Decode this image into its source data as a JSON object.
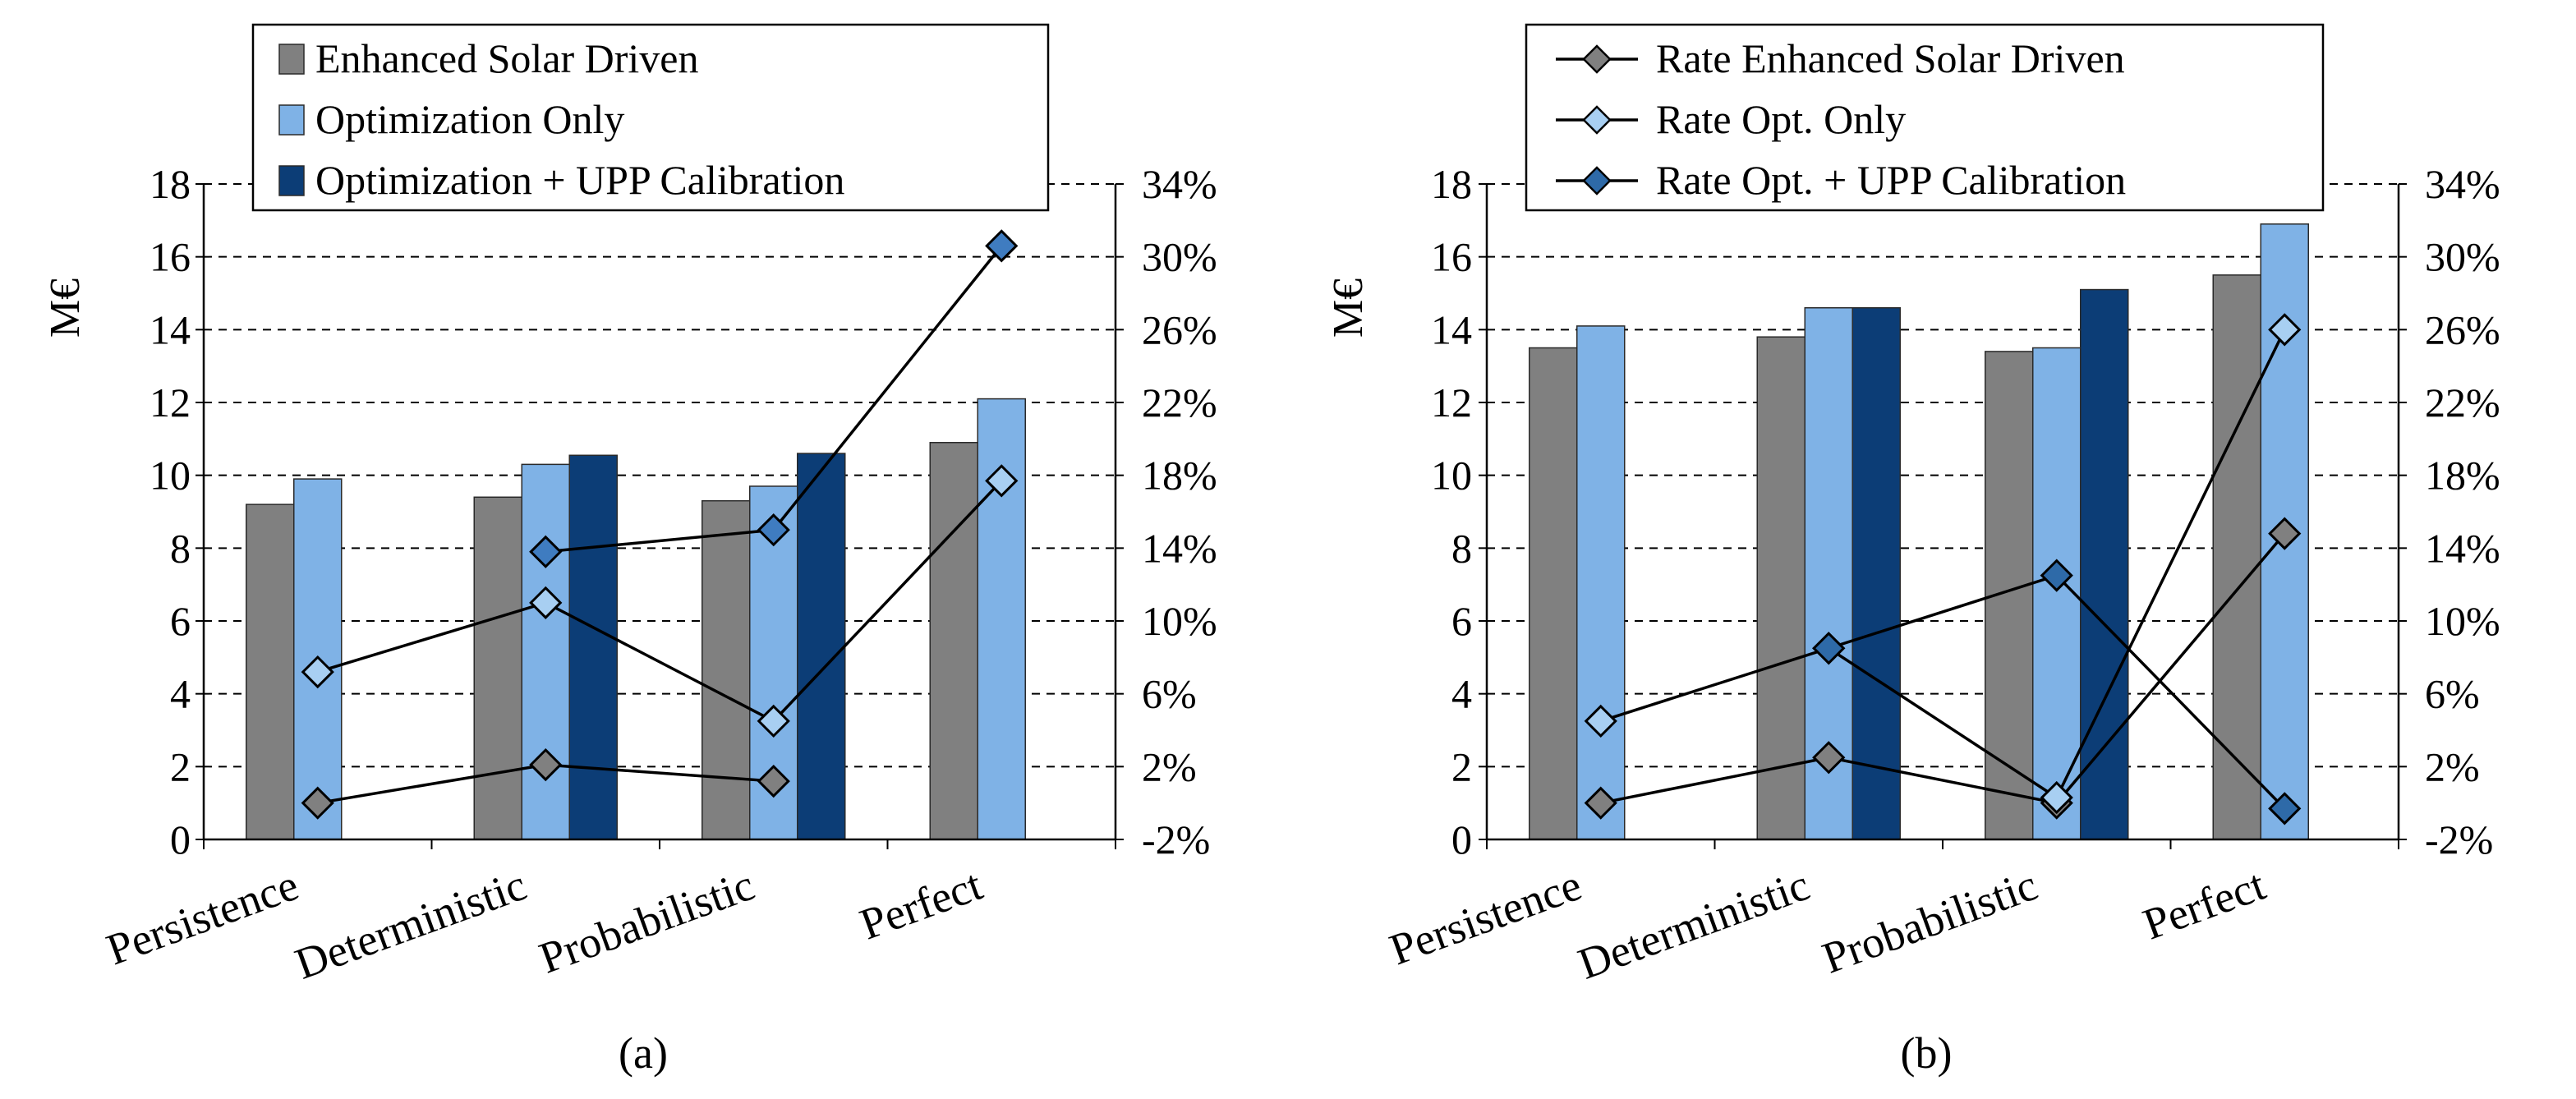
{
  "chart_data": [
    {
      "type": "bar",
      "panel_label": "(a)",
      "categories": [
        "Persistence",
        "Deterministic",
        "Probabilistic",
        "Perfect"
      ],
      "ylabel": "M€",
      "ylim": [
        0,
        18
      ],
      "yticks": [
        "0",
        "2",
        "4",
        "6",
        "8",
        "10",
        "12",
        "14",
        "16",
        "18"
      ],
      "y2lim": [
        -2,
        34
      ],
      "y2ticks": [
        "-2%",
        "2%",
        "6%",
        "10%",
        "14%",
        "18%",
        "22%",
        "26%",
        "30%",
        "34%"
      ],
      "grid": true,
      "legend_position": "top",
      "series": [
        {
          "name": "Enhanced Solar Driven",
          "color": "#808080",
          "values": [
            9.2,
            9.4,
            9.3,
            10.9
          ]
        },
        {
          "name": "Optimization Only",
          "color": "#7fb2e6",
          "values": [
            9.9,
            10.3,
            9.7,
            12.1
          ]
        },
        {
          "name": "Optimization + UPP Calibration",
          "color": "#0c3d76",
          "values": [
            null,
            10.55,
            10.6,
            null
          ]
        }
      ],
      "rate_series": [
        {
          "color": "#808080",
          "values": [
            0,
            2.1,
            1.2,
            null
          ]
        },
        {
          "color": "#a8cff2",
          "values": [
            7.2,
            11,
            4.5,
            17.7
          ]
        },
        {
          "color": "#3f7cc0",
          "values": [
            null,
            13.8,
            15,
            30.6
          ]
        }
      ]
    },
    {
      "type": "bar",
      "panel_label": "(b)",
      "categories": [
        "Persistence",
        "Deterministic",
        "Probabilistic",
        "Perfect"
      ],
      "ylabel": "M€",
      "ylim": [
        0,
        18
      ],
      "yticks": [
        "0",
        "2",
        "4",
        "6",
        "8",
        "10",
        "12",
        "14",
        "16",
        "18"
      ],
      "y2lim": [
        -2,
        34
      ],
      "y2ticks": [
        "-2%",
        "2%",
        "6%",
        "10%",
        "14%",
        "18%",
        "22%",
        "26%",
        "30%",
        "34%"
      ],
      "grid": true,
      "legend_position": "top",
      "series": [
        {
          "name": "Enhanced Solar Driven",
          "color": "#808080",
          "values": [
            13.5,
            13.8,
            13.4,
            15.5
          ]
        },
        {
          "name": "Optimization Only",
          "color": "#7fb2e6",
          "values": [
            14.1,
            14.6,
            13.5,
            16.9
          ]
        },
        {
          "name": "Optimization + UPP Calibration",
          "color": "#0c3d76",
          "values": [
            null,
            14.6,
            15.1,
            null
          ]
        }
      ],
      "rate_series": [
        {
          "name": "Rate Enhanced Solar Driven",
          "color": "#808080",
          "values": [
            0,
            2.5,
            0,
            14.8
          ]
        },
        {
          "name": "Rate Opt. Only",
          "color": "#a8cff2",
          "values": [
            4.5,
            8.5,
            0.3,
            26
          ]
        },
        {
          "name": "Rate Opt. + UPP Calibration",
          "color": "#2e6aa8",
          "values": [
            null,
            8.5,
            12.5,
            -0.3
          ]
        }
      ]
    }
  ]
}
